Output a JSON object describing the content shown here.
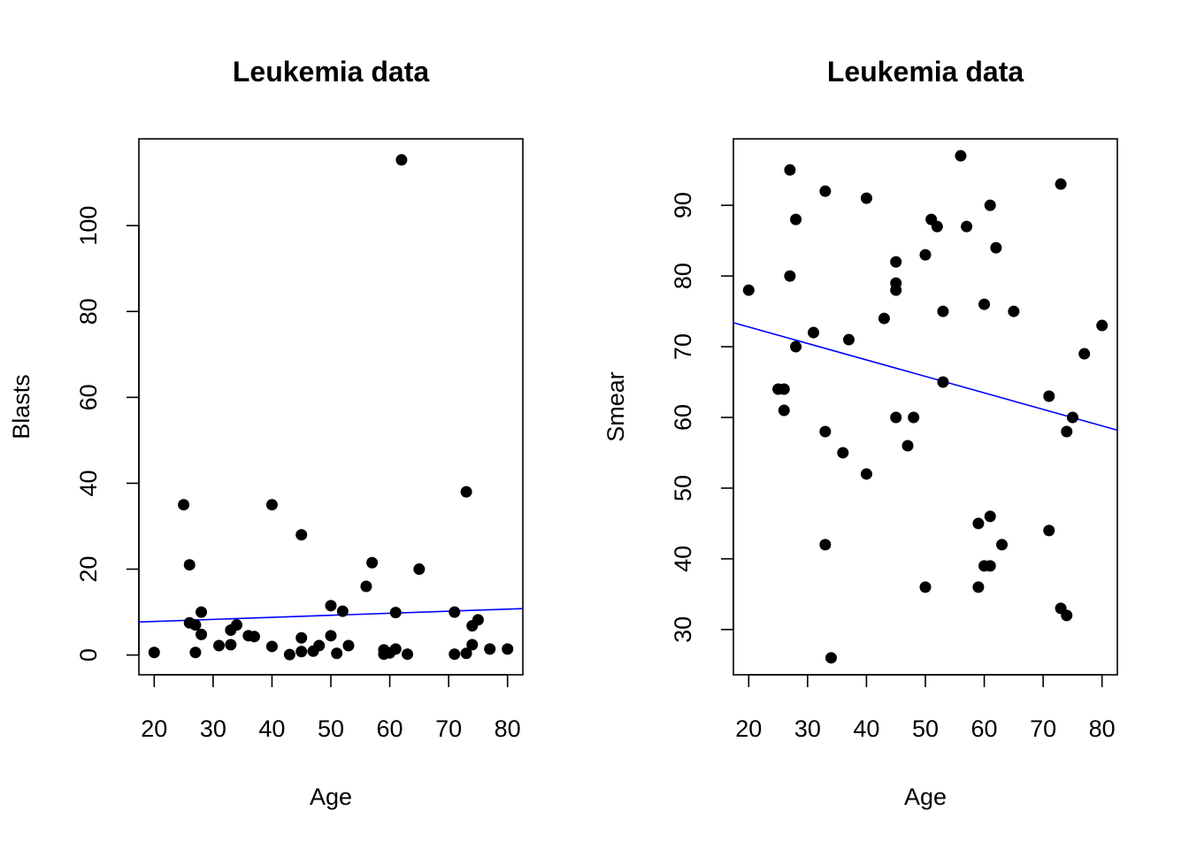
{
  "chart_data": [
    {
      "type": "scatter",
      "title": "Leukemia data",
      "xlabel": "Age",
      "ylabel": "Blasts",
      "xlim": [
        17.4,
        82.6
      ],
      "ylim": [
        -4.6,
        120.2
      ],
      "xticks": [
        20,
        30,
        40,
        50,
        60,
        70,
        80
      ],
      "yticks": [
        0,
        20,
        40,
        60,
        80,
        100
      ],
      "grid": false,
      "regression_line": {
        "color": "#0000ff",
        "x": [
          17.4,
          82.6
        ],
        "y": [
          7.7,
          10.8
        ]
      },
      "points": [
        [
          20,
          0.6
        ],
        [
          25,
          35
        ],
        [
          26,
          21
        ],
        [
          26,
          7.5
        ],
        [
          27,
          7
        ],
        [
          27,
          0.6
        ],
        [
          28,
          4.8
        ],
        [
          28,
          10
        ],
        [
          31,
          2.2
        ],
        [
          33,
          2.4
        ],
        [
          33,
          5.8
        ],
        [
          34,
          7
        ],
        [
          36,
          4.5
        ],
        [
          37,
          4.3
        ],
        [
          40,
          35
        ],
        [
          40,
          2
        ],
        [
          43,
          0.1
        ],
        [
          45,
          28
        ],
        [
          45,
          4
        ],
        [
          45,
          0.8
        ],
        [
          47,
          0.9
        ],
        [
          48,
          2.2
        ],
        [
          50,
          11.5
        ],
        [
          50,
          4.5
        ],
        [
          51,
          0.4
        ],
        [
          52,
          10.2
        ],
        [
          53,
          2.2
        ],
        [
          56,
          16
        ],
        [
          57,
          21.5
        ],
        [
          59,
          0.2
        ],
        [
          59,
          1.2
        ],
        [
          60,
          0.5
        ],
        [
          61,
          9.9
        ],
        [
          61,
          1.4
        ],
        [
          62,
          115.3
        ],
        [
          63,
          0.2
        ],
        [
          65,
          20
        ],
        [
          71,
          10
        ],
        [
          71,
          0.2
        ],
        [
          73,
          38
        ],
        [
          73,
          0.4
        ],
        [
          74,
          2.4
        ],
        [
          74,
          6.8
        ],
        [
          75,
          8.2
        ],
        [
          77,
          1.4
        ],
        [
          80,
          1.4
        ]
      ]
    },
    {
      "type": "scatter",
      "title": "Leukemia data",
      "xlabel": "Age",
      "ylabel": "Smear",
      "xlim": [
        17.4,
        82.6
      ],
      "ylim": [
        23.6,
        99.4
      ],
      "xticks": [
        20,
        30,
        40,
        50,
        60,
        70,
        80
      ],
      "yticks": [
        30,
        40,
        50,
        60,
        70,
        80,
        90
      ],
      "grid": false,
      "regression_line": {
        "color": "#0000ff",
        "x": [
          17.4,
          82.6
        ],
        "y": [
          73.4,
          58.2
        ]
      },
      "points": [
        [
          20,
          78
        ],
        [
          25,
          64
        ],
        [
          26,
          64
        ],
        [
          26,
          61
        ],
        [
          27,
          95
        ],
        [
          27,
          80
        ],
        [
          28,
          88
        ],
        [
          28,
          70
        ],
        [
          31,
          72
        ],
        [
          33,
          92
        ],
        [
          33,
          58
        ],
        [
          33,
          42
        ],
        [
          34,
          26
        ],
        [
          36,
          55
        ],
        [
          37,
          71
        ],
        [
          40,
          91
        ],
        [
          40,
          52
        ],
        [
          43,
          74
        ],
        [
          45,
          82
        ],
        [
          45,
          79
        ],
        [
          45,
          78
        ],
        [
          45,
          60
        ],
        [
          47,
          56
        ],
        [
          48,
          60
        ],
        [
          50,
          83
        ],
        [
          50,
          36
        ],
        [
          51,
          88
        ],
        [
          52,
          87
        ],
        [
          53,
          75
        ],
        [
          53,
          65
        ],
        [
          56,
          97
        ],
        [
          57,
          87
        ],
        [
          59,
          45
        ],
        [
          59,
          36
        ],
        [
          60,
          76
        ],
        [
          60,
          39
        ],
        [
          61,
          90
        ],
        [
          61,
          46
        ],
        [
          61,
          39
        ],
        [
          62,
          84
        ],
        [
          63,
          42
        ],
        [
          65,
          75
        ],
        [
          71,
          63
        ],
        [
          71,
          44
        ],
        [
          73,
          93
        ],
        [
          73,
          33
        ],
        [
          74,
          58
        ],
        [
          74,
          32
        ],
        [
          75,
          60
        ],
        [
          77,
          69
        ],
        [
          80,
          73
        ]
      ]
    }
  ]
}
